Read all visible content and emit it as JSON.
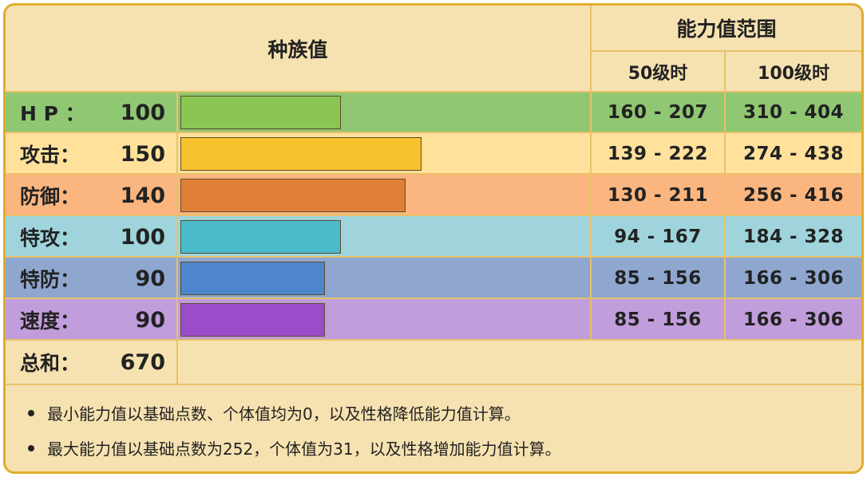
{
  "header": {
    "base_stats": "种族值",
    "stat_range": "能力值范围",
    "level50": "50级时",
    "level100": "100级时"
  },
  "rows": [
    {
      "label": "H P ：",
      "value": "100",
      "range50": "160 - 207",
      "range100": "310 - 404",
      "color_row": "#8fc772",
      "color_bar": "#8bc653"
    },
    {
      "label": "攻击：",
      "value": "150",
      "range50": "139 - 222",
      "range100": "274 - 438",
      "color_row": "#ffe19c",
      "color_bar": "#f8c22e"
    },
    {
      "label": "防御：",
      "value": "140",
      "range50": "130 - 211",
      "range100": "256 - 416",
      "color_row": "#fbb67f",
      "color_bar": "#e07f35"
    },
    {
      "label": "特攻：",
      "value": "100",
      "range50": "94 - 167",
      "range100": "184 - 328",
      "color_row": "#9fd4dc",
      "color_bar": "#4bbccc"
    },
    {
      "label": "特防：",
      "value": "90",
      "range50": "85 - 156",
      "range100": "166 - 306",
      "color_row": "#8fa7cf",
      "color_bar": "#4d86cc"
    },
    {
      "label": "速度：",
      "value": "90",
      "range50": "85 - 156",
      "range100": "166 - 306",
      "color_row": "#c19ddb",
      "color_bar": "#9b4cc8"
    }
  ],
  "total": {
    "label": "总和：",
    "value": "670"
  },
  "notes": [
    "最小能力值以基础点数、个体值均为0，以及性格降低能力值计算。",
    "最大能力值以基础点数为252，个体值为31，以及性格增加能力值计算。"
  ]
}
